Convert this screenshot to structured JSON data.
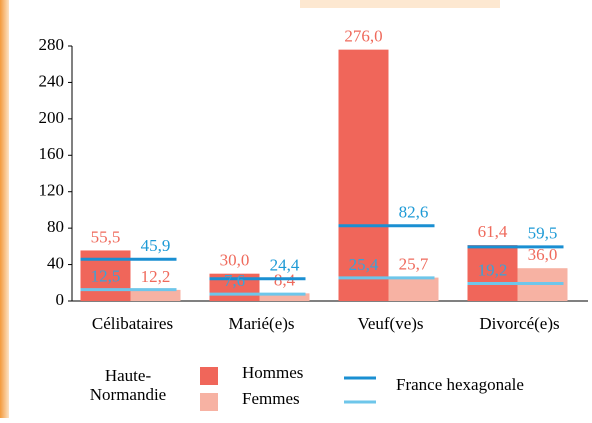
{
  "chart_data": {
    "type": "bar",
    "categories": [
      "Célibataires",
      "Marié(e)s",
      "Veuf(ve)s",
      "Divorcé(e)s"
    ],
    "series": [
      {
        "name": "Hommes",
        "color": "#f0665a",
        "values": [
          55.5,
          30.0,
          276.0,
          61.4
        ],
        "value_labels": [
          "55,5",
          "30,0",
          "276,0",
          "61,4"
        ]
      },
      {
        "name": "Femmes",
        "color": "#f7b2a3",
        "values": [
          12.2,
          8.4,
          25.7,
          36.0
        ],
        "value_labels": [
          "12,2",
          "8,4",
          "25,7",
          "36,0"
        ]
      }
    ],
    "reference": {
      "name": "France hexagonale",
      "series": [
        {
          "color": "#1a8fd2",
          "values": [
            45.9,
            24.4,
            82.6,
            59.5
          ],
          "value_labels": [
            "45,9",
            "24,4",
            "82,6",
            "59,5"
          ]
        },
        {
          "color": "#6ec6ea",
          "values": [
            12.5,
            7.6,
            25.4,
            19.2
          ],
          "value_labels": [
            "12,5",
            "7,6",
            "25,4",
            "19,2"
          ]
        }
      ]
    },
    "legend_group": [
      "Haute-",
      "Normandie"
    ],
    "ylim": [
      0,
      280
    ],
    "yticks": [
      0,
      40,
      80,
      120,
      160,
      200,
      240,
      280
    ]
  }
}
